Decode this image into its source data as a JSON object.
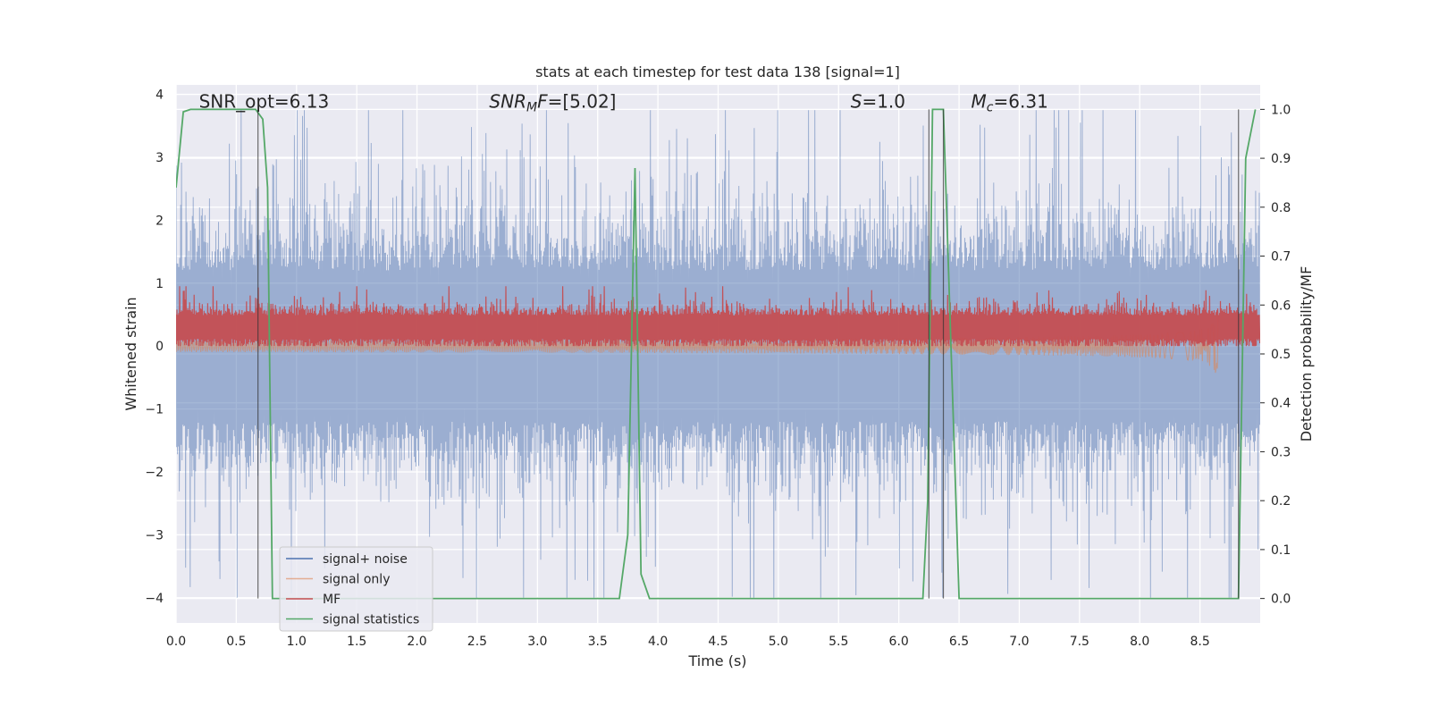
{
  "chart_data": {
    "type": "line",
    "title": "stats at each timestep for test data 138 [signal=1]",
    "xlabel": "Time (s)",
    "ylabel": "Whitened strain",
    "y2label": "Detection probability/MF",
    "xlim": [
      0.0,
      9.0
    ],
    "ylim": [
      -4.4,
      4.15
    ],
    "y2lim": [
      -0.05,
      1.05
    ],
    "xticks": [
      "0.0",
      "0.5",
      "1.0",
      "1.5",
      "2.0",
      "2.5",
      "3.0",
      "3.5",
      "4.0",
      "4.5",
      "5.0",
      "5.5",
      "6.0",
      "6.5",
      "7.0",
      "7.5",
      "8.0",
      "8.5"
    ],
    "yticks": [
      "4",
      "3",
      "2",
      "1",
      "0",
      "−1",
      "−2",
      "−3",
      "−4"
    ],
    "y2ticks": [
      "1.0",
      "0.9",
      "0.8",
      "0.7",
      "0.6",
      "0.5",
      "0.4",
      "0.3",
      "0.2",
      "0.1",
      "0.0"
    ],
    "grid": true,
    "legend_position": "lower-left",
    "annotations": [
      {
        "text": "SNR_opt=6.13",
        "x": 0.19,
        "y": 3.9
      },
      {
        "text": "SNR_MF=[5.02]",
        "x": 2.6,
        "y": 3.9
      },
      {
        "text": "S=1.0",
        "x": 5.6,
        "y": 3.9
      },
      {
        "text": "M_c=6.31",
        "x": 6.6,
        "y": 3.9
      }
    ],
    "vertical_markers": [
      0.68,
      6.25,
      6.37,
      8.82
    ],
    "series": [
      {
        "name": "signal+ noise",
        "color": "#4c72b0",
        "axis": "left",
        "kind": "noise",
        "center": 0.0,
        "typical_amplitude": 1.6,
        "peak_max": 3.75,
        "peak_min": -4.0
      },
      {
        "name": "signal only",
        "color": "#dd8452",
        "axis": "left",
        "kind": "chirp",
        "chirp_end": 8.65,
        "max_amplitude": 0.65
      },
      {
        "name": "MF",
        "color": "#c44e52",
        "axis": "left",
        "kind": "noise",
        "center": 0.3,
        "typical_amplitude": 0.25,
        "peak_max": 0.95,
        "peak_min": 0.0
      },
      {
        "name": "signal statistics",
        "color": "#55a868",
        "axis": "right",
        "kind": "line",
        "x": [
          0.0,
          0.06,
          0.12,
          0.3,
          0.5,
          0.66,
          0.72,
          0.76,
          0.8,
          0.95,
          3.68,
          3.75,
          3.81,
          3.86,
          3.93,
          6.2,
          6.24,
          6.28,
          6.32,
          6.37,
          6.5,
          8.82,
          8.88,
          8.96
        ],
        "y": [
          0.84,
          0.995,
          1.0,
          1.0,
          1.0,
          1.0,
          0.98,
          0.84,
          0.0,
          0.0,
          0.0,
          0.13,
          0.88,
          0.05,
          0.0,
          0.0,
          0.2,
          1.0,
          1.0,
          1.0,
          0.0,
          0.0,
          0.9,
          1.0
        ]
      }
    ]
  }
}
